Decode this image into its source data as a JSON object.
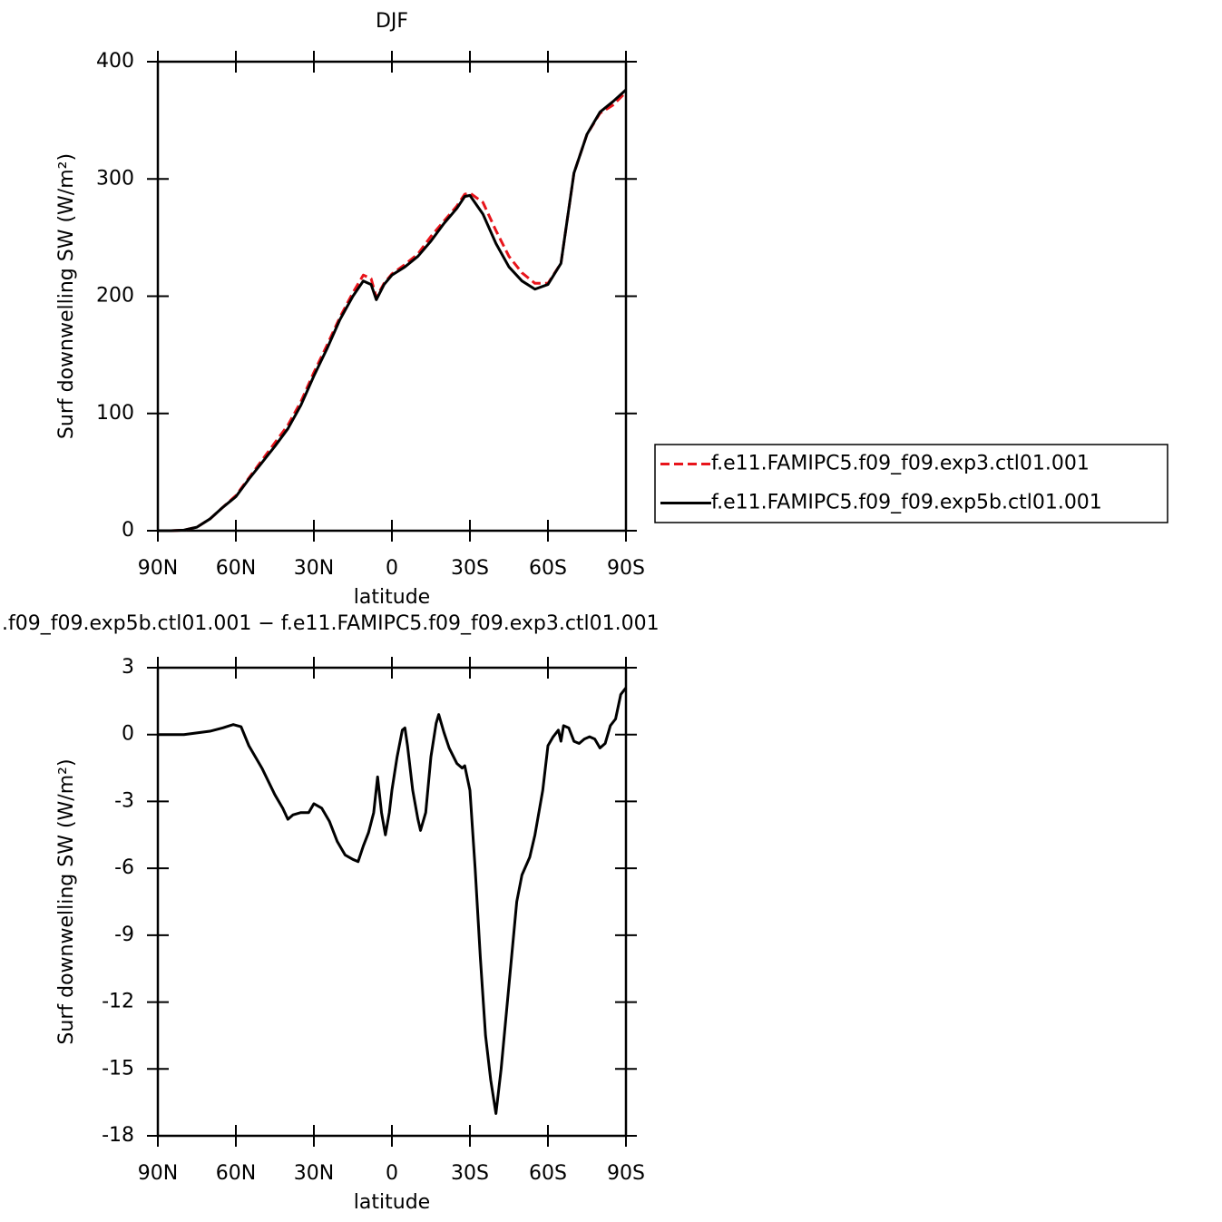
{
  "chart_data": [
    {
      "type": "line",
      "title": "DJF",
      "xlabel": "latitude",
      "ylabel": "Surf downwelling SW (W/m²)",
      "x": [
        90,
        85,
        80,
        75,
        70,
        65,
        60,
        55,
        50,
        45,
        40,
        35,
        30,
        25,
        20,
        15,
        11,
        8,
        6,
        3,
        0,
        -5,
        -10,
        -15,
        -20,
        -25,
        -28,
        -30,
        -35,
        -40,
        -45,
        -50,
        -55,
        -60,
        -65,
        -70,
        -75,
        -80,
        -85,
        -90
      ],
      "series": [
        {
          "name": "f.e11.FAMIPC5.f09_f09.exp3.ctl01.001",
          "color": "#e8141b",
          "dashed": true,
          "values": [
            0,
            0,
            0.5,
            3,
            10,
            20,
            30,
            45,
            60,
            75,
            90,
            110,
            135,
            158,
            182,
            203,
            218,
            215,
            199,
            211,
            219,
            227,
            236,
            251,
            264,
            277,
            287,
            288,
            280,
            256,
            234,
            220,
            211,
            211,
            228,
            305,
            338,
            356,
            363,
            374
          ]
        },
        {
          "name": "f.e11.FAMIPC5.f09_f09.exp5b.ctl01.001",
          "color": "#000000",
          "dashed": false,
          "values": [
            0,
            0,
            0.5,
            3,
            10,
            20,
            29,
            44,
            58,
            72,
            87,
            107,
            132,
            155,
            180,
            200,
            213,
            210,
            197,
            210,
            218,
            225,
            234,
            247,
            262,
            275,
            285,
            286,
            270,
            245,
            225,
            213,
            206,
            210,
            228,
            305,
            338,
            357,
            366,
            376
          ]
        }
      ],
      "xlim": [
        90,
        -90
      ],
      "xticks": [
        {
          "value": 90,
          "label": "90N"
        },
        {
          "value": 60,
          "label": "60N"
        },
        {
          "value": 30,
          "label": "30N"
        },
        0,
        {
          "value": -30,
          "label": "30S"
        },
        {
          "value": -60,
          "label": "60S"
        },
        {
          "value": -90,
          "label": "90S"
        }
      ],
      "ylim": [
        0,
        400
      ],
      "yticks": [
        0,
        100,
        200,
        300,
        400
      ],
      "legend": "right"
    },
    {
      "type": "line",
      "title": ".f09_f09.exp5b.ctl01.001  −  f.e11.FAMIPC5.f09_f09.exp3.ctl01.001",
      "xlabel": "latitude",
      "ylabel": "Surf downwelling SW (W/m²)",
      "x": [
        90,
        80,
        70,
        65,
        61,
        58,
        55,
        50,
        45,
        42,
        40,
        38,
        35,
        32,
        30,
        27,
        24,
        21,
        18,
        15,
        13,
        11,
        9,
        7,
        5.5,
        4,
        2.5,
        1,
        0,
        -2,
        -4,
        -5,
        -6,
        -8,
        -10,
        -11,
        -13,
        -15,
        -17,
        -18,
        -20,
        -22,
        -25,
        -27,
        -28,
        -30,
        -32,
        -34,
        -36,
        -38,
        -40,
        -42,
        -44,
        -46,
        -48,
        -50,
        -53,
        -55,
        -58,
        -60,
        -62,
        -64,
        -65,
        -66,
        -68,
        -70,
        -72,
        -74,
        -76,
        -78,
        -80,
        -82,
        -84,
        -86,
        -88,
        -90
      ],
      "series": [
        {
          "name": null,
          "color": "#000000",
          "dashed": false,
          "values": [
            0,
            0,
            0.15,
            0.3,
            0.45,
            0.35,
            -0.5,
            -1.5,
            -2.7,
            -3.3,
            -3.8,
            -3.6,
            -3.5,
            -3.5,
            -3.1,
            -3.3,
            -3.9,
            -4.8,
            -5.4,
            -5.6,
            -5.7,
            -5.0,
            -4.4,
            -3.5,
            -1.9,
            -3.5,
            -4.5,
            -3.5,
            -2.5,
            -1.0,
            0.2,
            0.3,
            -0.5,
            -2.5,
            -3.8,
            -4.3,
            -3.5,
            -1.0,
            0.5,
            0.9,
            0.1,
            -0.6,
            -1.3,
            -1.5,
            -1.4,
            -2.5,
            -6,
            -10,
            -13.5,
            -15.5,
            -17.0,
            -15,
            -12.5,
            -10,
            -7.5,
            -6.3,
            -5.5,
            -4.5,
            -2.5,
            -0.5,
            -0.1,
            0.2,
            -0.3,
            0.4,
            0.3,
            -0.3,
            -0.4,
            -0.2,
            -0.1,
            -0.2,
            -0.6,
            -0.4,
            0.4,
            0.7,
            1.8,
            2.1
          ]
        }
      ],
      "xlim": [
        90,
        -90
      ],
      "xticks": [
        {
          "value": 90,
          "label": "90N"
        },
        {
          "value": 60,
          "label": "60N"
        },
        {
          "value": 30,
          "label": "30N"
        },
        0,
        {
          "value": -30,
          "label": "30S"
        },
        {
          "value": -60,
          "label": "60S"
        },
        {
          "value": -90,
          "label": "90S"
        }
      ],
      "ylim": [
        -18,
        3
      ],
      "yticks": [
        3,
        0,
        -3,
        -6,
        -9,
        -12,
        -15,
        -18
      ]
    }
  ]
}
